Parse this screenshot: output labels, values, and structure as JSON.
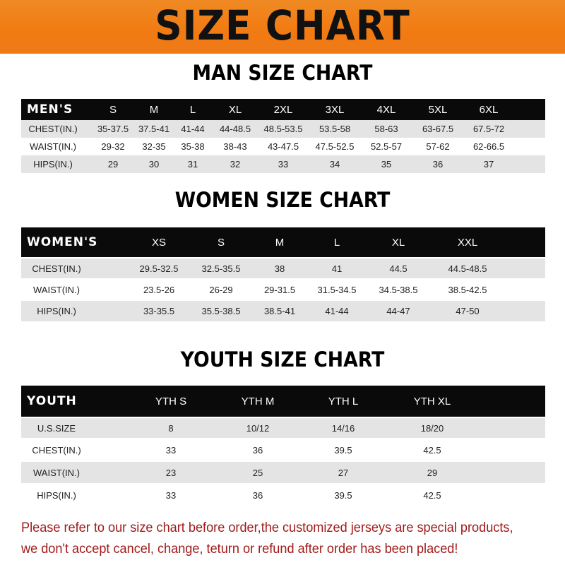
{
  "title": "SIZE CHART",
  "men": {
    "title": "MAN SIZE CHART",
    "header": [
      "MEN'S",
      "S",
      "M",
      "L",
      "XL",
      "2XL",
      "3XL",
      "4XL",
      "5XL",
      "6XL"
    ],
    "rows": [
      [
        "CHEST(IN.)",
        "35-37.5",
        "37.5-41",
        "41-44",
        "44-48.5",
        "48.5-53.5",
        "53.5-58",
        "58-63",
        "63-67.5",
        "67.5-72"
      ],
      [
        "WAIST(IN.)",
        "29-32",
        "32-35",
        "35-38",
        "38-43",
        "43-47.5",
        "47.5-52.5",
        "52.5-57",
        "57-62",
        "62-66.5"
      ],
      [
        "HIPS(IN.)",
        "29",
        "30",
        "31",
        "32",
        "33",
        "34",
        "35",
        "36",
        "37"
      ]
    ]
  },
  "women": {
    "title": "WOMEN SIZE CHART",
    "header": [
      "WOMEN'S",
      "XS",
      "S",
      "M",
      "L",
      "XL",
      "XXL"
    ],
    "rows": [
      [
        "CHEST(IN.)",
        "29.5-32.5",
        "32.5-35.5",
        "38",
        "41",
        "44.5",
        "44.5-48.5"
      ],
      [
        "WAIST(IN.)",
        "23.5-26",
        "26-29",
        "29-31.5",
        "31.5-34.5",
        "34.5-38.5",
        "38.5-42.5"
      ],
      [
        "HIPS(IN.)",
        "33-35.5",
        "35.5-38.5",
        "38.5-41",
        "41-44",
        "44-47",
        "47-50"
      ]
    ]
  },
  "youth": {
    "title": "YOUTH SIZE CHART",
    "header": [
      "YOUTH",
      "YTH S",
      "YTH M",
      "YTH L",
      "YTH XL"
    ],
    "rows": [
      [
        "U.S.SIZE",
        "8",
        "10/12",
        "14/16",
        "18/20"
      ],
      [
        "CHEST(IN.)",
        "33",
        "36",
        "39.5",
        "42.5"
      ],
      [
        "WAIST(IN.)",
        "23",
        "25",
        "27",
        "29"
      ],
      [
        "HIPS(IN.)",
        "33",
        "36",
        "39.5",
        "42.5"
      ]
    ]
  },
  "note": "Please refer to our size chart before order,the customized jerseys are special products, we don't accept cancel, change, teturn or refund after order has been placed!",
  "colors": {
    "banner": "#f27a12",
    "header_row": "#0a0a0a",
    "stripe": "#e4e4e4",
    "note": "#a11a1a"
  }
}
